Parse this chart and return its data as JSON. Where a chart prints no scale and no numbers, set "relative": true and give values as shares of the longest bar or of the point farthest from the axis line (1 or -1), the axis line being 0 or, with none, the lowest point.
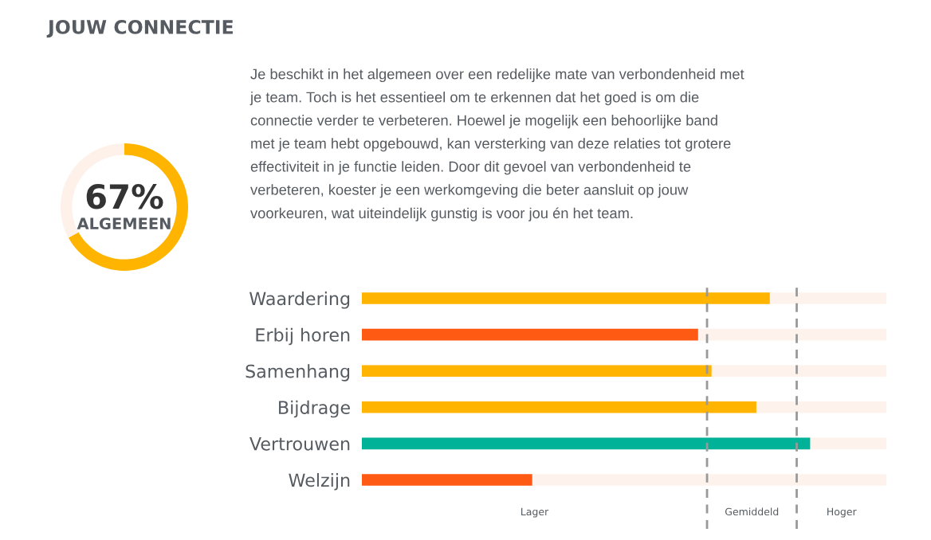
{
  "chart_data": [
    {
      "type": "other",
      "title": "JOUW CONNECTIE",
      "annotations": [
        "Je beschikt in het algemeen over een redelijke mate van verbondenheid met\nje team. Toch is het essentieel om te erkennen dat het goed is om die\nconnectie verder te verbeteren. Hoewel je mogelijk een behoorlijke band\nmet je team hebt opgebouwd, kan versterking van deze relaties tot grotere\neffectiviteit in je functie leiden. Door dit gevoel van verbondenheid te\nverbeteren, koester je een werkomgeving die beter aansluit op jouw\nvoorkeuren, wat uiteindelijk gunstig is voor jou én het team."
      ]
    },
    {
      "type": "donut",
      "title": "ALGEMEEN",
      "categories": [
        null,
        null
      ],
      "values": [
        67,
        33
      ],
      "colors": [
        "#ffb400",
        "#fdf1ea"
      ],
      "value_labels": [
        "67%",
        null
      ]
    },
    {
      "type": "bar",
      "orientation": "horizontal",
      "relative": true,
      "categories": [
        "Waardering",
        "Erbij horen",
        "Samenhang",
        "Bijdrage",
        "Vertrouwen",
        "Welzijn"
      ],
      "values": [
        0.91,
        0.75,
        0.78,
        0.88,
        1,
        0.38
      ],
      "colors": [
        "#ffb400",
        "#ff5a14",
        "#ffb400",
        "#ffb400",
        "#00b398",
        "#ff5a14"
      ],
      "ref_lines": [
        {
          "axis": "x",
          "value": 0.77,
          "line_style": "dashed",
          "color": "#999999"
        },
        {
          "axis": "x",
          "value": 0.97,
          "line_style": "dashed",
          "color": "#999999"
        }
      ],
      "annotations": [
        "Lager",
        "Gemiddeld",
        "Hoger"
      ],
      "tick_labels": "y"
    }
  ]
}
